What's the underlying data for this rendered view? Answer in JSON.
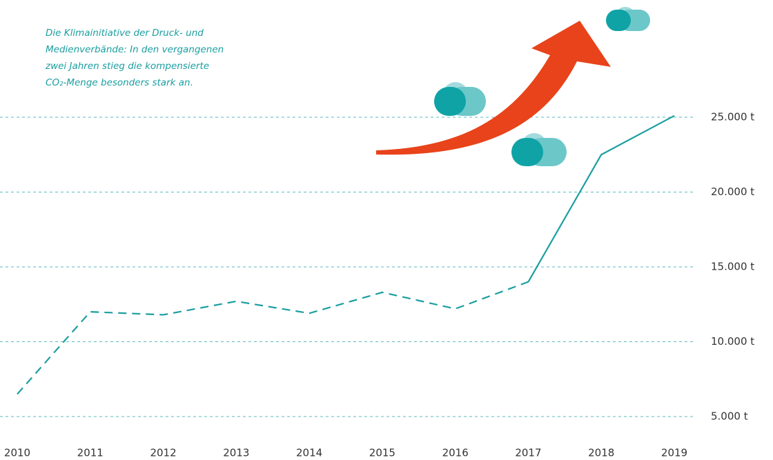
{
  "chart_data": {
    "type": "line",
    "annotation": [
      "Die Klimainitiative der Druck- und",
      "Medienverbände: In den vergangenen",
      "zwei Jahren stieg die kompensierte",
      "CO₂-Menge besonders stark an."
    ],
    "x": [
      2010,
      2011,
      2012,
      2013,
      2014,
      2015,
      2016,
      2017,
      2018,
      2019
    ],
    "xlim": [
      2010,
      2019
    ],
    "xticks": [
      2010,
      2011,
      2012,
      2013,
      2014,
      2015,
      2016,
      2017,
      2018,
      2019
    ],
    "series": [
      {
        "color": "#1a9ea0",
        "values": [
          6500,
          12000,
          11800,
          12700,
          11900,
          13300,
          12200,
          14000,
          22500,
          25100
        ]
      }
    ],
    "dashed_through": 2017,
    "ylim": [
      5000,
      25000
    ],
    "yticks": [
      {
        "value": 5000,
        "label": "5.000 t"
      },
      {
        "value": 10000,
        "label": "10.000 t"
      },
      {
        "value": 15000,
        "label": "15.000 t"
      },
      {
        "value": 20000,
        "label": "20.000 t"
      },
      {
        "value": 25000,
        "label": "25.000 t"
      }
    ],
    "grid": true,
    "grid_color": "#5bb9c2"
  }
}
